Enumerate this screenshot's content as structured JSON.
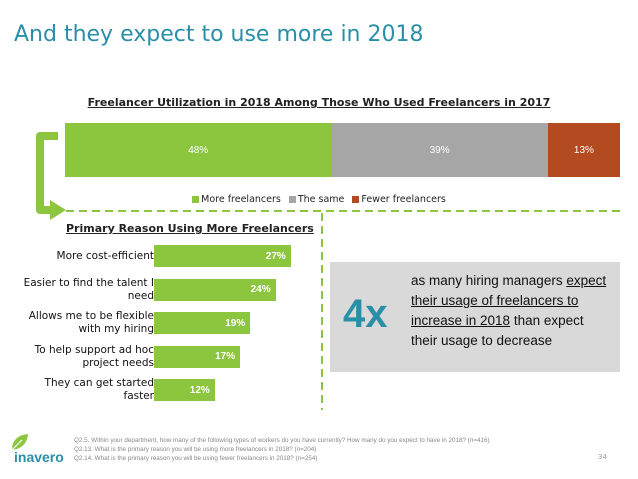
{
  "slide": {
    "title": "And they expect to use more in 2018",
    "page_number": "34"
  },
  "colors": {
    "title": "#2a8fa6",
    "more": "#8cc63f",
    "same": "#a6a6a6",
    "fewer": "#b34a20",
    "accent_dashed": "#8cc63f",
    "callout_bg": "#d9d9d9"
  },
  "chart_data": [
    {
      "type": "bar",
      "orientation": "horizontal-stacked",
      "title": "Freelancer Utilization in 2018 Among Those Who Used Freelancers in 2017",
      "series": [
        {
          "name": "More freelancers",
          "values": [
            48
          ],
          "label": "48%"
        },
        {
          "name": "The same",
          "values": [
            39
          ],
          "label": "39%"
        },
        {
          "name": "Fewer freelancers",
          "values": [
            13
          ],
          "label": "13%"
        }
      ],
      "legend_position": "bottom"
    },
    {
      "type": "bar",
      "orientation": "horizontal",
      "title": "Primary Reason Using More Freelancers",
      "categories": [
        "More cost-efficient",
        "Easier to find the talent I need",
        "Allows me to be flexible with my hiring",
        "To help support ad hoc project needs",
        "They can get started faster"
      ],
      "values": [
        27,
        24,
        19,
        17,
        12
      ],
      "labels": [
        "27%",
        "24%",
        "19%",
        "17%",
        "12%"
      ],
      "xlim": [
        0,
        30
      ]
    }
  ],
  "callout": {
    "big": "4x",
    "line_pre": "as many hiring managers",
    "underlined": "expect their usage of freelancers to increase in 2018",
    "line_post": "than expect their usage to decrease"
  },
  "footnotes": [
    "Q2.5. Within your department, how many of the following types of workers do you have currently? How many do you expect to have in 2018? (n=416)",
    "Q2.13. What is the primary reason you will be using more freelancers in 2018? (n=204)",
    "Q2.14. What is the primary reason you will be using fewer freelancers in 2018? (n=254)"
  ],
  "brand": {
    "logo_text": "inavero",
    "logo_icon": "leaf-icon"
  }
}
